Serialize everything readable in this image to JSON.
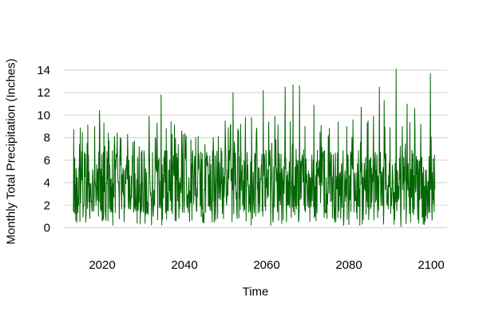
{
  "chart_data": {
    "type": "line",
    "title": "",
    "xlabel": "Time",
    "ylabel": "Monthly Total Precipitation (Inches)",
    "series_name": "Monthly Total Precipitation",
    "x_ticks": [
      2020,
      2040,
      2060,
      2080,
      2100
    ],
    "y_ticks": [
      0,
      2,
      4,
      6,
      8,
      10,
      12,
      14
    ],
    "xlim": [
      2012,
      2102
    ],
    "ylim": [
      0,
      14.2
    ],
    "grid": "horizontal-only",
    "legend": "none",
    "colors": {
      "line": "#006400",
      "gridline": "#d9d9d9",
      "text": "#000000",
      "background": "#ffffff"
    },
    "sampling": {
      "start_year": 2013,
      "end_year": 2101,
      "points_per_year": 12,
      "seed": 20130,
      "base_min": 1.3,
      "base_max": 6.9,
      "low_prob": 0.1,
      "low_min": 0.2,
      "low_max": 1.5,
      "high_prob": 0.07,
      "high_min": 6.5,
      "high_max": 9.5
    },
    "peaks": [
      [
        2014.5,
        7.4
      ],
      [
        2016.3,
        7.5
      ],
      [
        2018.2,
        9.0
      ],
      [
        2019.3,
        10.4
      ],
      [
        2020.4,
        9.3
      ],
      [
        2021.5,
        8.4
      ],
      [
        2023.0,
        8.1
      ],
      [
        2024.6,
        7.9
      ],
      [
        2026.2,
        8.3
      ],
      [
        2027.5,
        7.6
      ],
      [
        2029.0,
        7.2
      ],
      [
        2031.4,
        9.9
      ],
      [
        2033.0,
        7.8
      ],
      [
        2034.3,
        11.8
      ],
      [
        2035.6,
        8.8
      ],
      [
        2037.0,
        8.3
      ],
      [
        2038.5,
        7.4
      ],
      [
        2040.2,
        7.6
      ],
      [
        2041.6,
        7.8
      ],
      [
        2043.3,
        8.1
      ],
      [
        2045.0,
        7.4
      ],
      [
        2047.0,
        8.0
      ],
      [
        2048.9,
        7.1
      ],
      [
        2050.0,
        7.6
      ],
      [
        2051.8,
        12.0
      ],
      [
        2053.2,
        8.6
      ],
      [
        2054.8,
        9.8
      ],
      [
        2056.3,
        9.8
      ],
      [
        2057.5,
        8.6
      ],
      [
        2059.2,
        12.2
      ],
      [
        2060.5,
        9.4
      ],
      [
        2062.0,
        9.9
      ],
      [
        2064.5,
        12.5
      ],
      [
        2066.4,
        12.7
      ],
      [
        2068.0,
        12.6
      ],
      [
        2069.3,
        9.0
      ],
      [
        2071.5,
        10.9
      ],
      [
        2073.0,
        8.5
      ],
      [
        2075.0,
        8.2
      ],
      [
        2077.4,
        9.4
      ],
      [
        2079.5,
        9.0
      ],
      [
        2081.0,
        9.6
      ],
      [
        2083.0,
        10.7
      ],
      [
        2084.5,
        9.3
      ],
      [
        2086.0,
        9.9
      ],
      [
        2087.4,
        12.5
      ],
      [
        2088.6,
        11.3
      ],
      [
        2090.0,
        8.9
      ],
      [
        2091.5,
        14.1
      ],
      [
        2093.0,
        9.0
      ],
      [
        2094.2,
        11.0
      ],
      [
        2096.0,
        10.6
      ],
      [
        2097.5,
        9.2
      ],
      [
        2099.8,
        13.7
      ]
    ],
    "lows": [
      [
        2016.0,
        0.5
      ],
      [
        2020.0,
        0.6
      ],
      [
        2024.2,
        0.8
      ],
      [
        2028.5,
        0.4
      ],
      [
        2033.5,
        0.7
      ],
      [
        2038.0,
        0.6
      ],
      [
        2044.5,
        0.5
      ],
      [
        2049.5,
        0.8
      ],
      [
        2055.0,
        0.6
      ],
      [
        2061.5,
        0.7
      ],
      [
        2066.0,
        0.9
      ],
      [
        2072.0,
        0.6
      ],
      [
        2078.0,
        0.8
      ],
      [
        2083.5,
        0.7
      ],
      [
        2087.0,
        0.9
      ],
      [
        2091.0,
        0.3
      ],
      [
        2092.7,
        0.1
      ],
      [
        2095.0,
        0.5
      ],
      [
        2097.0,
        0.4
      ]
    ]
  }
}
